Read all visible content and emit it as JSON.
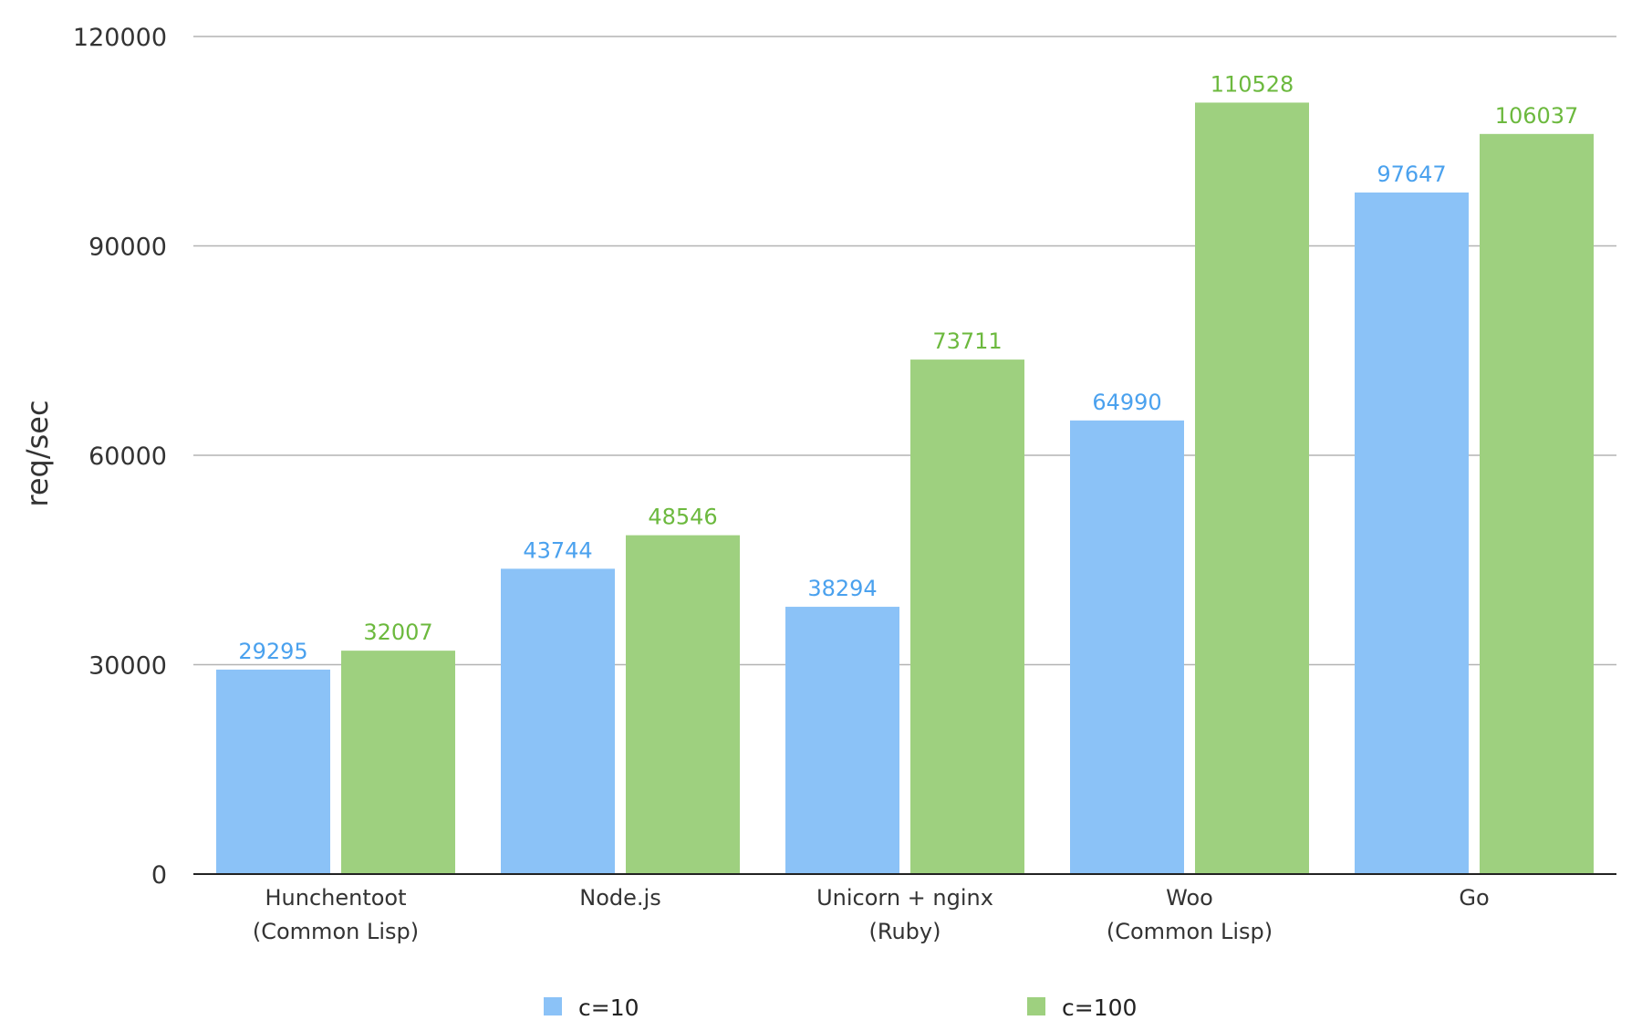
{
  "chart_data": {
    "type": "bar",
    "categories": [
      [
        "Hunchentoot",
        "(Common Lisp)"
      ],
      [
        "Node.js"
      ],
      [
        "Unicorn + nginx",
        "(Ruby)"
      ],
      [
        "Woo",
        "(Common Lisp)"
      ],
      [
        "Go"
      ]
    ],
    "series": [
      {
        "name": "c=10",
        "values": [
          29295,
          43744,
          38294,
          64990,
          97647
        ],
        "color": "#8bc2f7",
        "label_color": "#4aa1ee"
      },
      {
        "name": "c=100",
        "values": [
          32007,
          48546,
          73711,
          110528,
          106037
        ],
        "color": "#9ed07f",
        "label_color": "#6cb93e"
      }
    ],
    "ylabel": "req/sec",
    "ylim": [
      0,
      120000
    ],
    "yticks": [
      0,
      30000,
      60000,
      90000,
      120000
    ],
    "grid": true,
    "legend_position": "bottom"
  }
}
